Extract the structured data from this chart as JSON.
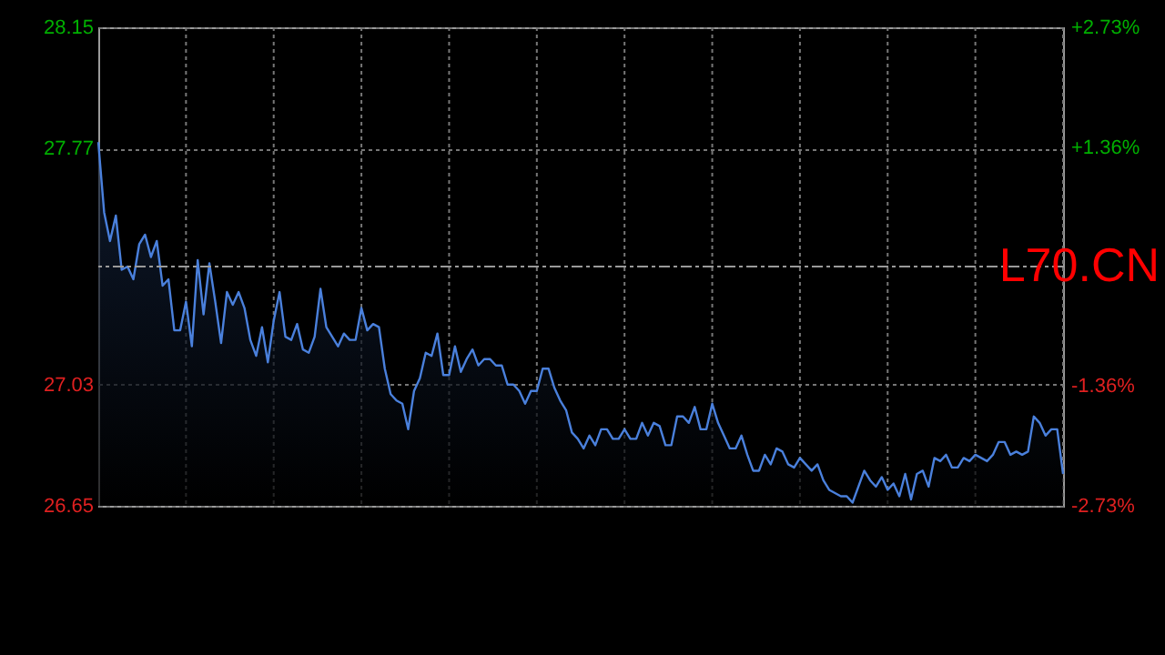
{
  "chart_data": {
    "type": "area",
    "annotations": [
      "L70.CN"
    ],
    "series": [
      {
        "color": "#4a80dc",
        "values": [
          27.79,
          27.57,
          27.48,
          27.56,
          27.39,
          27.4,
          27.36,
          27.47,
          27.5,
          27.43,
          27.48,
          27.34,
          27.36,
          27.2,
          27.2,
          27.29,
          27.15,
          27.42,
          27.25,
          27.41,
          27.29,
          27.16,
          27.32,
          27.28,
          27.32,
          27.27,
          27.17,
          27.12,
          27.21,
          27.1,
          27.23,
          27.32,
          27.18,
          27.17,
          27.22,
          27.14,
          27.13,
          27.18,
          27.33,
          27.21,
          27.18,
          27.15,
          27.19,
          27.17,
          27.17,
          27.27,
          27.2,
          27.22,
          27.21,
          27.08,
          27.0,
          26.98,
          26.97,
          26.89,
          27.01,
          27.05,
          27.13,
          27.12,
          27.19,
          27.06,
          27.06,
          27.15,
          27.07,
          27.11,
          27.14,
          27.09,
          27.11,
          27.11,
          27.09,
          27.09,
          27.03,
          27.03,
          27.01,
          26.97,
          27.01,
          27.01,
          27.08,
          27.08,
          27.02,
          26.98,
          26.95,
          26.88,
          26.86,
          26.83,
          26.87,
          26.84,
          26.89,
          26.89,
          26.86,
          26.86,
          26.89,
          26.86,
          26.86,
          26.91,
          26.87,
          26.91,
          26.9,
          26.84,
          26.84,
          26.93,
          26.93,
          26.91,
          26.96,
          26.89,
          26.89,
          26.97,
          26.91,
          26.87,
          26.83,
          26.83,
          26.87,
          26.81,
          26.76,
          26.76,
          26.81,
          26.78,
          26.83,
          26.82,
          26.78,
          26.77,
          26.8,
          26.78,
          26.76,
          26.78,
          26.73,
          26.7,
          26.69,
          26.68,
          26.68,
          26.66,
          26.71,
          26.76,
          26.73,
          26.71,
          26.74,
          26.7,
          26.72,
          26.68,
          26.75,
          26.67,
          26.75,
          26.76,
          26.71,
          26.8,
          26.79,
          26.81,
          26.77,
          26.77,
          26.8,
          26.79,
          26.81,
          26.8,
          26.79,
          26.81,
          26.85,
          26.85,
          26.81,
          26.82,
          26.81,
          26.82,
          26.93,
          26.91,
          26.87,
          26.89,
          26.89,
          26.75
        ]
      }
    ],
    "categories": [
      null,
      null,
      null,
      null,
      null,
      null,
      null,
      null,
      null,
      null,
      null,
      null,
      null,
      null,
      null,
      null,
      null,
      null,
      null,
      null,
      null,
      null,
      null,
      null,
      null,
      null,
      null,
      null,
      null,
      null,
      null,
      null,
      null,
      null,
      null,
      null,
      null,
      null,
      null,
      null,
      null,
      null,
      null,
      null,
      null,
      null,
      null,
      null,
      null,
      null,
      null,
      null,
      null,
      null,
      null,
      null,
      null,
      null,
      null,
      null,
      null,
      null,
      null,
      null,
      null,
      null,
      null,
      null,
      null,
      null,
      null,
      null,
      null,
      null,
      null,
      null,
      null,
      null,
      null,
      null,
      null,
      null,
      null,
      null,
      null,
      null,
      null,
      null,
      null,
      null,
      null,
      null,
      null,
      null,
      null,
      null,
      null,
      null,
      null,
      null,
      null,
      null,
      null,
      null,
      null,
      null,
      null,
      null,
      null,
      null,
      null,
      null,
      null,
      null,
      null,
      null,
      null,
      null,
      null,
      null,
      null,
      null,
      null,
      null,
      null,
      null,
      null,
      null,
      null,
      null,
      null,
      null,
      null,
      null,
      null,
      null,
      null,
      null,
      null,
      null,
      null,
      null,
      null,
      null,
      null,
      null,
      null,
      null,
      null,
      null,
      null,
      null,
      null,
      null,
      null,
      null,
      null,
      null,
      null,
      null,
      null,
      null,
      null,
      null,
      null,
      null
    ],
    "ylim": [
      26.65,
      28.15
    ],
    "yticks": [
      26.65,
      27.03,
      27.77,
      28.15
    ],
    "y2lim": [
      -2.73,
      2.73
    ],
    "y2ticks": [
      {
        "value": -2.73,
        "label": "-2.73%"
      },
      {
        "value": -1.36,
        "label": "-1.36%"
      },
      {
        "value": 1.36,
        "label": "+1.36%"
      },
      {
        "value": 2.73,
        "label": "+2.73%"
      }
    ],
    "ref_lines": [
      {
        "axis": "y",
        "value": 27.4,
        "color": "#9a9a9a",
        "line_style": "dashed"
      }
    ],
    "grid": true,
    "tick_labels": "y",
    "line_style": "solid"
  }
}
